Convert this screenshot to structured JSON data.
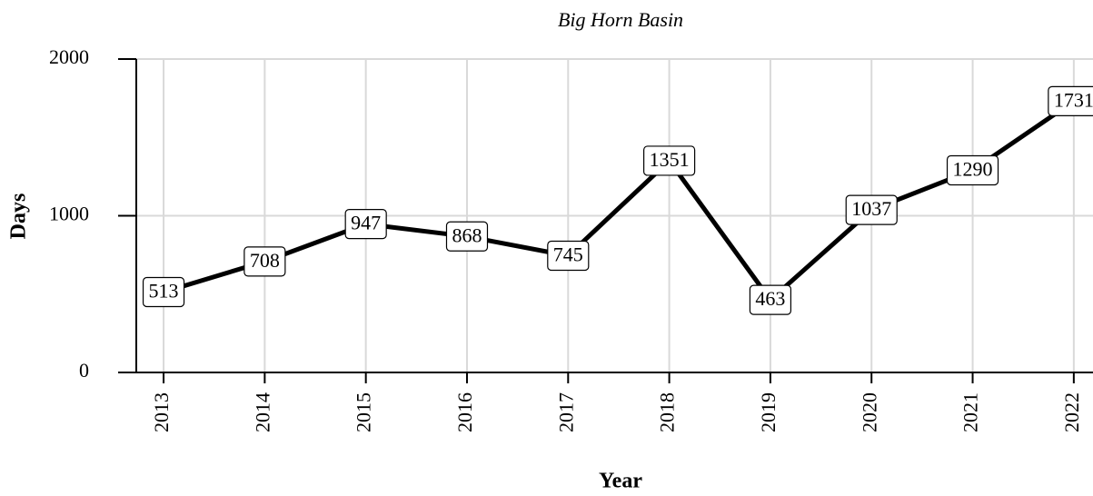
{
  "chart_data": {
    "type": "line",
    "title": "Big Horn Basin",
    "x_label": "Year",
    "y_label": "Days",
    "x": [
      2013,
      2014,
      2015,
      2016,
      2017,
      2018,
      2019,
      2020,
      2021,
      2022
    ],
    "series": [
      {
        "name": "Days",
        "color": "#000000",
        "values": [
          513,
          708,
          947,
          868,
          745,
          1351,
          463,
          1037,
          1290,
          1731
        ]
      }
    ],
    "xlim": [
      2012.73,
      2022.19
    ],
    "xticks": [
      2013,
      2014,
      2015,
      2016,
      2017,
      2018,
      2019,
      2020,
      2021,
      2022
    ],
    "ylim": [
      0,
      2000
    ],
    "yticks": [
      0,
      1000,
      2000
    ],
    "grid": true
  }
}
